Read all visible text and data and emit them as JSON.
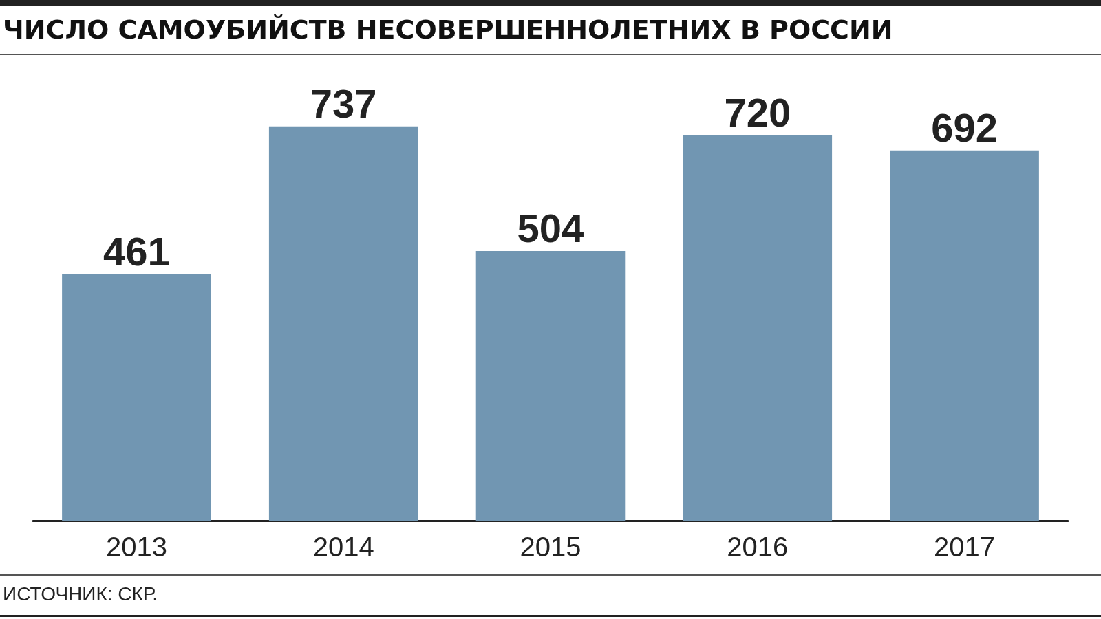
{
  "chart_data": {
    "type": "bar",
    "title": "ЧИСЛО САМОУБИЙСТВ НЕСОВЕРШЕННОЛЕТНИХ В РОССИИ",
    "categories": [
      "2013",
      "2014",
      "2015",
      "2016",
      "2017"
    ],
    "values": [
      461,
      737,
      504,
      720,
      692
    ],
    "color": "#7196b2",
    "data_labels": true,
    "annotations": [
      "ИСТОЧНИК: СКР."
    ]
  }
}
